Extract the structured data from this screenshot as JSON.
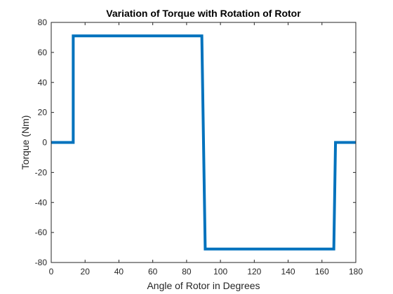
{
  "chart_data": {
    "type": "line",
    "title": "Variation of Torque with Rotation of Rotor",
    "xlabel": "Angle of Rotor in Degrees",
    "ylabel": "Torque (Nm)",
    "xlim": [
      0,
      180
    ],
    "ylim": [
      -80,
      80
    ],
    "xticks": [
      0,
      20,
      40,
      60,
      80,
      100,
      120,
      140,
      160,
      180
    ],
    "yticks": [
      -80,
      -60,
      -40,
      -20,
      0,
      20,
      40,
      60,
      80
    ],
    "grid": false,
    "series": [
      {
        "color": "#0072BD",
        "x": [
          0,
          13,
          13,
          89,
          91,
          167,
          168,
          180
        ],
        "y": [
          0,
          0,
          71,
          71,
          -71,
          -71,
          0,
          0
        ]
      }
    ]
  }
}
